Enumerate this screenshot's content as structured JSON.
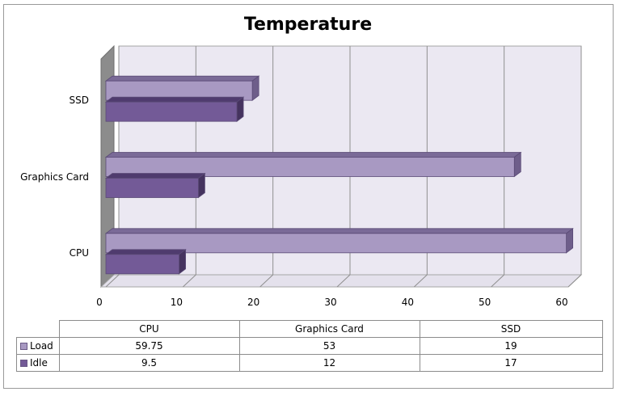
{
  "chart_data": {
    "type": "bar",
    "orientation": "horizontal",
    "title": "Temperature",
    "categories": [
      "CPU",
      "Graphics Card",
      "SSD"
    ],
    "series": [
      {
        "name": "Load",
        "values": [
          59.75,
          53,
          19
        ],
        "color": "#a899c2"
      },
      {
        "name": "Idle",
        "values": [
          9.5,
          12,
          17
        ],
        "color": "#735a97"
      }
    ],
    "xlim": [
      0,
      60
    ],
    "x_ticks": [
      "0",
      "10",
      "20",
      "30",
      "40",
      "50",
      "60"
    ],
    "grid": true,
    "legend": "data-table",
    "three_d": true,
    "plot_background": "#ebe8f2"
  },
  "table": {
    "header": [
      "CPU",
      "Graphics Card",
      "SSD"
    ],
    "rows": [
      {
        "label": "Load",
        "cells": [
          "59.75",
          "53",
          "19"
        ]
      },
      {
        "label": "Idle",
        "cells": [
          "9.5",
          "12",
          "17"
        ]
      }
    ]
  }
}
